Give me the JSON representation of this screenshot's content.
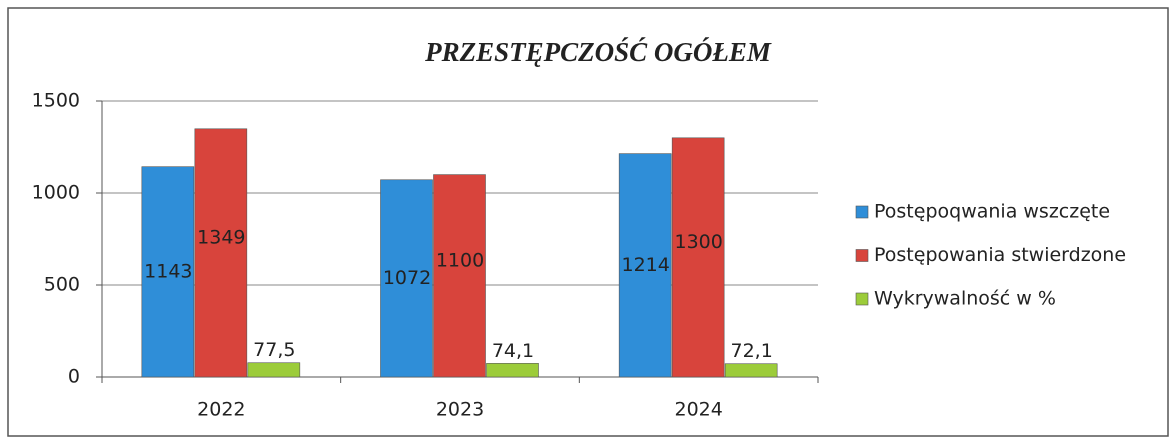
{
  "chart_data": {
    "type": "bar",
    "title": "PRZESTĘPCZOŚĆ OGÓŁEM",
    "categories": [
      "2022",
      "2023",
      "2024"
    ],
    "series": [
      {
        "name": "Postępoqwania wszczęte",
        "color": "#2f8ed8",
        "values": [
          1143,
          1072,
          1214
        ]
      },
      {
        "name": "Postępowania stwierdzone",
        "color": "#d8443c",
        "values": [
          1349,
          1100,
          1300
        ]
      },
      {
        "name": "Wykrywalność w %",
        "color": "#9ccc3a",
        "values": [
          77.5,
          74.1,
          72.1
        ],
        "value_labels": [
          "77,5",
          "74,1",
          "72,1"
        ]
      }
    ],
    "ylim": [
      0,
      1500
    ],
    "yticks": [
      0,
      500,
      1000,
      1500
    ],
    "grid": true,
    "legend": "right"
  }
}
